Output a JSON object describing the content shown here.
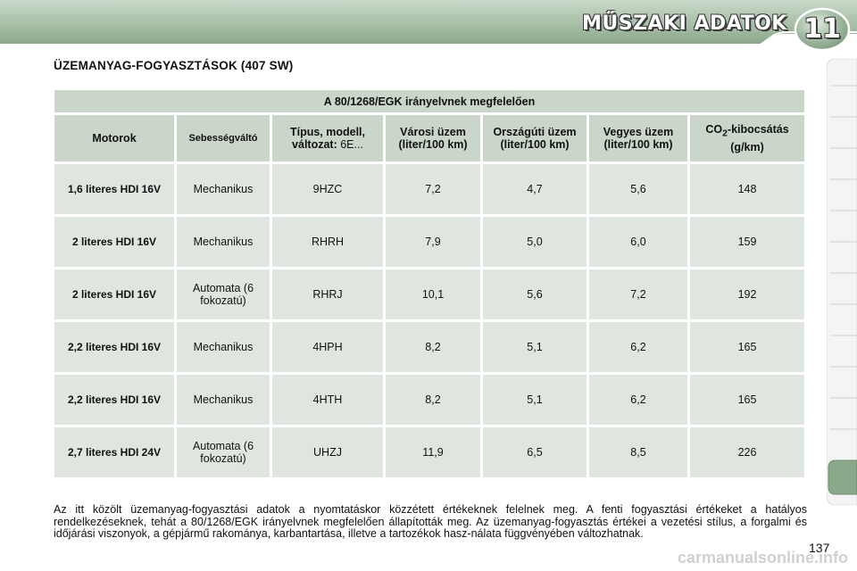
{
  "header": {
    "chapter_title": "MŰSZAKI ADATOK",
    "chapter_number": "11",
    "band_color": "#8aa88a",
    "band_color_light": "#c9d9c9"
  },
  "section_title": "ÜZEMANYAG-FOGYASZTÁSOK (407 SW)",
  "table": {
    "caption": "A 80/1268/EGK irányelvnek megfelelően",
    "headers": {
      "motor": "Motorok",
      "gearbox": "Sebességváltó",
      "type_bold": "Típus, modell, változat:",
      "type_normal": " 6E...",
      "urban": "Városi üzem (liter/100 km)",
      "extra_urban": "Országúti üzem (liter/100 km)",
      "combined": "Vegyes üzem (liter/100 km)",
      "co2_pre": "CO",
      "co2_sub": "2",
      "co2_post": "-kibocsátás (g/km)"
    },
    "rows": [
      {
        "motor": "1,6 literes HDI 16V",
        "gearbox": "Mechanikus",
        "type": "9HZC",
        "urban": "7,2",
        "extra_urban": "4,7",
        "combined": "5,6",
        "co2": "148"
      },
      {
        "motor": "2 literes HDI 16V",
        "gearbox": "Mechanikus",
        "type": "RHRH",
        "urban": "7,9",
        "extra_urban": "5,0",
        "combined": "6,0",
        "co2": "159"
      },
      {
        "motor": "2 literes HDI 16V",
        "gearbox": "Automata (6 fokozatú)",
        "type": "RHRJ",
        "urban": "10,1",
        "extra_urban": "5,6",
        "combined": "7,2",
        "co2": "192"
      },
      {
        "motor": "2,2 literes HDI 16V",
        "gearbox": "Mechanikus",
        "type": "4HPH",
        "urban": "8,2",
        "extra_urban": "5,1",
        "combined": "6,2",
        "co2": "165"
      },
      {
        "motor": "2,2 literes HDI 16V",
        "gearbox": "Mechanikus",
        "type": "4HTH",
        "urban": "8,2",
        "extra_urban": "5,1",
        "combined": "6,2",
        "co2": "165"
      },
      {
        "motor": "2,7 literes HDI 24V",
        "gearbox": "Automata (6 fokozatú)",
        "type": "UHZJ",
        "urban": "11,9",
        "extra_urban": "6,5",
        "combined": "8,5",
        "co2": "226"
      }
    ]
  },
  "note": "Az itt közölt üzemanyag-fogyasztási adatok a nyomtatáskor közzétett értékeknek felelnek meg. A fenti fogyasztási értékeket a hatályos rendelkezéseknek, tehát a 80/1268/EGK irányelvnek megfelelően állapították meg. Az üzemanyag-fogyasztás értékei a vezetési stílus, a forgalmi és időjárási viszonyok, a gépjármű rakománya, karbantartása, illetve a tartozékok hasz-nálata függvényében változhatnak.",
  "page_number": "137",
  "watermark": "carmanualsonline.info"
}
